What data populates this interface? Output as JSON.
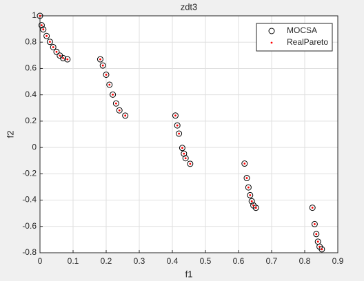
{
  "chart_data": {
    "type": "scatter",
    "title": "zdt3",
    "x_label": "f1",
    "y_label": "f2",
    "xlim": [
      0,
      0.9
    ],
    "xticks": [
      0,
      0.1,
      0.2,
      0.3,
      0.4,
      0.5,
      0.6,
      0.7,
      0.8,
      0.9
    ],
    "ylim": [
      -0.8,
      1
    ],
    "yticks": [
      -0.8,
      -0.6,
      -0.4,
      -0.2,
      0,
      0.2,
      0.4,
      0.6,
      0.8,
      1
    ],
    "grid": true,
    "legend": "top-right",
    "series": [
      {
        "name": "MOCSA",
        "color": "#000000",
        "marker": "circle",
        "x": [
          0,
          0.005,
          0.01,
          0.02,
          0.03,
          0.04,
          0.05,
          0.06,
          0.07,
          0.083,
          0.1822,
          0.19,
          0.2,
          0.21,
          0.22,
          0.23,
          0.24,
          0.2577,
          0.4093,
          0.415,
          0.42,
          0.43,
          0.435,
          0.44,
          0.4538,
          0.6183,
          0.625,
          0.63,
          0.635,
          0.64,
          0.645,
          0.6525,
          0.8233,
          0.83,
          0.835,
          0.84,
          0.845,
          0.8518
        ],
        "values": [
          1,
          0.9285,
          0.8969,
          0.8468,
          0.8025,
          0.762,
          0.7264,
          0.698,
          0.6788,
          0.6697,
          0.6699,
          0.6228,
          0.5528,
          0.4768,
          0.4017,
          0.3343,
          0.2819,
          0.2422,
          0.2423,
          0.1674,
          0.105,
          -0.0036,
          -0.0471,
          -0.0818,
          -0.1242,
          -0.1225,
          -0.2325,
          -0.3034,
          -0.3627,
          -0.4087,
          -0.4402,
          -0.4583,
          -0.4578,
          -0.5825,
          -0.6578,
          -0.7154,
          -0.7538,
          -0.7733
        ]
      },
      {
        "name": "RealPareto",
        "color": "#ff0000",
        "marker": "dot",
        "x": [
          0,
          0.005,
          0.01,
          0.02,
          0.03,
          0.04,
          0.05,
          0.06,
          0.07,
          0.083,
          0.1822,
          0.19,
          0.2,
          0.21,
          0.22,
          0.23,
          0.24,
          0.2577,
          0.4093,
          0.415,
          0.42,
          0.43,
          0.435,
          0.44,
          0.4538,
          0.6183,
          0.625,
          0.63,
          0.635,
          0.64,
          0.645,
          0.6525,
          0.8233,
          0.83,
          0.835,
          0.84,
          0.845,
          0.8518
        ],
        "values": [
          1,
          0.9285,
          0.8969,
          0.8468,
          0.8025,
          0.762,
          0.7264,
          0.698,
          0.6788,
          0.6697,
          0.6699,
          0.6228,
          0.5528,
          0.4768,
          0.4017,
          0.3343,
          0.2819,
          0.2422,
          0.2423,
          0.1674,
          0.105,
          -0.0036,
          -0.0471,
          -0.0818,
          -0.1242,
          -0.1225,
          -0.2325,
          -0.3034,
          -0.3627,
          -0.4087,
          -0.4402,
          -0.4583,
          -0.4578,
          -0.5825,
          -0.6578,
          -0.7154,
          -0.7538,
          -0.7733
        ]
      }
    ]
  }
}
